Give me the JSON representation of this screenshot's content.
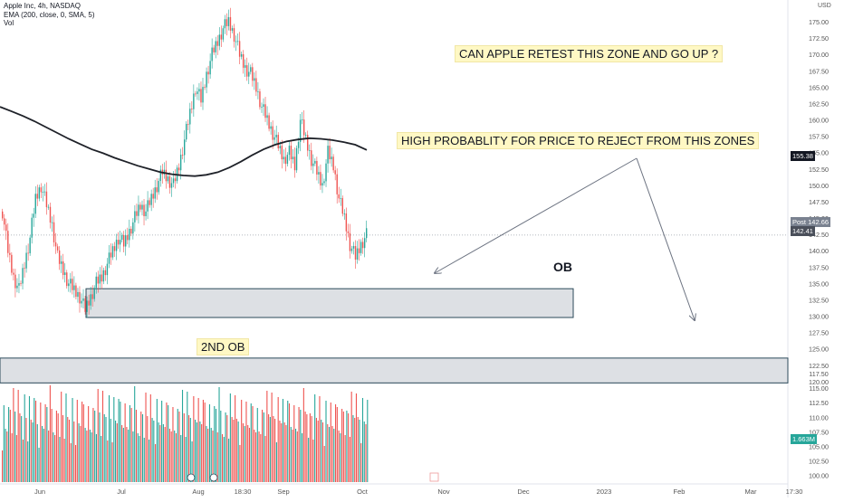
{
  "legend": {
    "symbol": "Apple Inc, 4h, NASDAQ",
    "ema": "EMA (200, close, 0, SMA, 5)",
    "vol": "Vol"
  },
  "currency": "USD",
  "annotations": {
    "question": "CAN APPLE RETEST THIS ZONE AND GO UP ?",
    "rejection": "HIGH PROBABLITY FOR PRICE TO REJECT FROM THIS ZONES",
    "ob": "OB",
    "second_ob": "2ND OB"
  },
  "price_tags": {
    "post_label": "Post",
    "post_value": "142.66",
    "last_value": "142.41",
    "ema_value": "155.38",
    "volume_value": "1.663M"
  },
  "colors": {
    "up": "#26a69a",
    "down": "#ef5350",
    "ema": "#1e2128",
    "zone_fill": "#dde0e4",
    "zone_border": "#2b4a5a",
    "annotation_bg": "#fff8c4",
    "arrow": "#6b7280",
    "ema_tag": "#131722",
    "last_tag": "#4a4f5a"
  },
  "chart_data": {
    "type": "candlestick",
    "title": "Apple Inc, 4h, NASDAQ",
    "x_tick_labels": [
      "Jun",
      "Jul",
      "Aug",
      "18:30",
      "Sep",
      "Oct",
      "Nov",
      "Dec",
      "2023",
      "Feb",
      "Mar",
      "17:30"
    ],
    "y_ticks_price": [
      "175.00",
      "172.50",
      "170.00",
      "167.50",
      "165.00",
      "162.50",
      "160.00",
      "157.50",
      "155.00",
      "152.50",
      "150.00",
      "147.50",
      "145.00",
      "142.50",
      "140.00",
      "137.50",
      "135.00",
      "132.50",
      "130.00",
      "127.50",
      "125.00",
      "122.50",
      "120.00"
    ],
    "y_ticks_volume": [
      "117.50",
      "115.00",
      "112.50",
      "110.00",
      "107.50",
      "105.00",
      "102.50",
      "100.00"
    ],
    "ylim": [
      120,
      177
    ],
    "closes": [
      146,
      140,
      136,
      134,
      138,
      142,
      148,
      150,
      147,
      144,
      139,
      137,
      135,
      134,
      133,
      131,
      133,
      135,
      136,
      138,
      140,
      142,
      141,
      143,
      145,
      147,
      146,
      148,
      150,
      152,
      151,
      150,
      153,
      157,
      161,
      165,
      163,
      167,
      170,
      172,
      174,
      175,
      173,
      170,
      168,
      167,
      165,
      162,
      160,
      158,
      156,
      154,
      155,
      153,
      160,
      157,
      154,
      152,
      150,
      155,
      153,
      148,
      145,
      141,
      139,
      141,
      142.4
    ],
    "ema": [
      162,
      161.3,
      160.6,
      159.8,
      158.9,
      158,
      157.1,
      156.3,
      155.5,
      154.9,
      154.2,
      153.6,
      153,
      152.5,
      152,
      151.7,
      151.5,
      151.4,
      151.6,
      152,
      152.7,
      153.6,
      154.6,
      155.5,
      156.2,
      156.7,
      157,
      157.2,
      157.1,
      156.9,
      156.6,
      156.2,
      155.4
    ],
    "zones": [
      {
        "name": "OB",
        "low": 129.8,
        "high": 134.2
      },
      {
        "name": "2ND OB",
        "low": 119.8,
        "high": 123.6
      }
    ]
  }
}
